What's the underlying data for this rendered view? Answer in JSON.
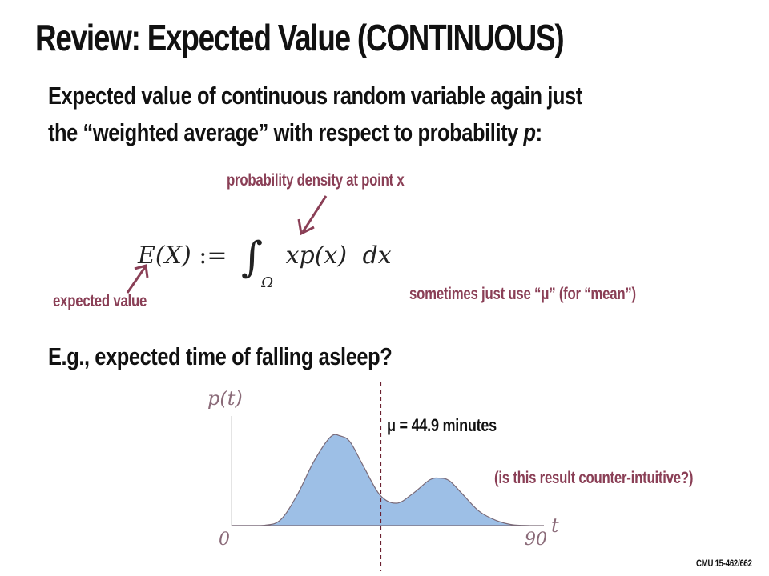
{
  "slide": {
    "title": "Review: Expected Value (CONTINUOUS)",
    "bullet_line_1": "Expected value of continuous random variable again just",
    "bullet_line_2_prefix": "the “weighted average” with respect to probability ",
    "bullet_line_2_var": "p",
    "bullet_line_2_suffix": ":",
    "annotation_density": "probability density at point x",
    "annotation_expected": "expected value",
    "annotation_mu": "sometimes just use “μ” (for “mean”)",
    "formula": {
      "lhs": "E(X)",
      "assign": ":=",
      "integral": "∫",
      "domain": "Ω",
      "integrand": "xp(x)",
      "differential": "dx"
    },
    "example_heading": "E.g., expected time of falling asleep?",
    "annotation_question": "(is this result counter-intuitive?)",
    "footer": "CMU 15-462/662"
  },
  "chart_data": {
    "type": "area",
    "ylabel": "p(t)",
    "xlabel": "t",
    "x_tick_labels": [
      "0",
      "90"
    ],
    "xlim": [
      0,
      90
    ],
    "mean_marker": {
      "x": 44.9,
      "label": "μ = 44.9 minutes",
      "style": "dashed"
    },
    "curve": {
      "x": [
        0,
        10,
        15,
        20,
        25,
        30,
        33,
        36,
        40,
        45,
        50,
        55,
        60,
        63,
        66,
        70,
        75,
        80,
        85,
        90
      ],
      "y": [
        0,
        0.004,
        0.07,
        0.35,
        0.72,
        0.99,
        1.0,
        0.93,
        0.66,
        0.34,
        0.25,
        0.36,
        0.51,
        0.53,
        0.5,
        0.35,
        0.16,
        0.06,
        0.01,
        0
      ]
    },
    "colors": {
      "fill": "#9dbfe6",
      "stroke": "#7a6a78",
      "mean_line": "#6b2030"
    }
  }
}
